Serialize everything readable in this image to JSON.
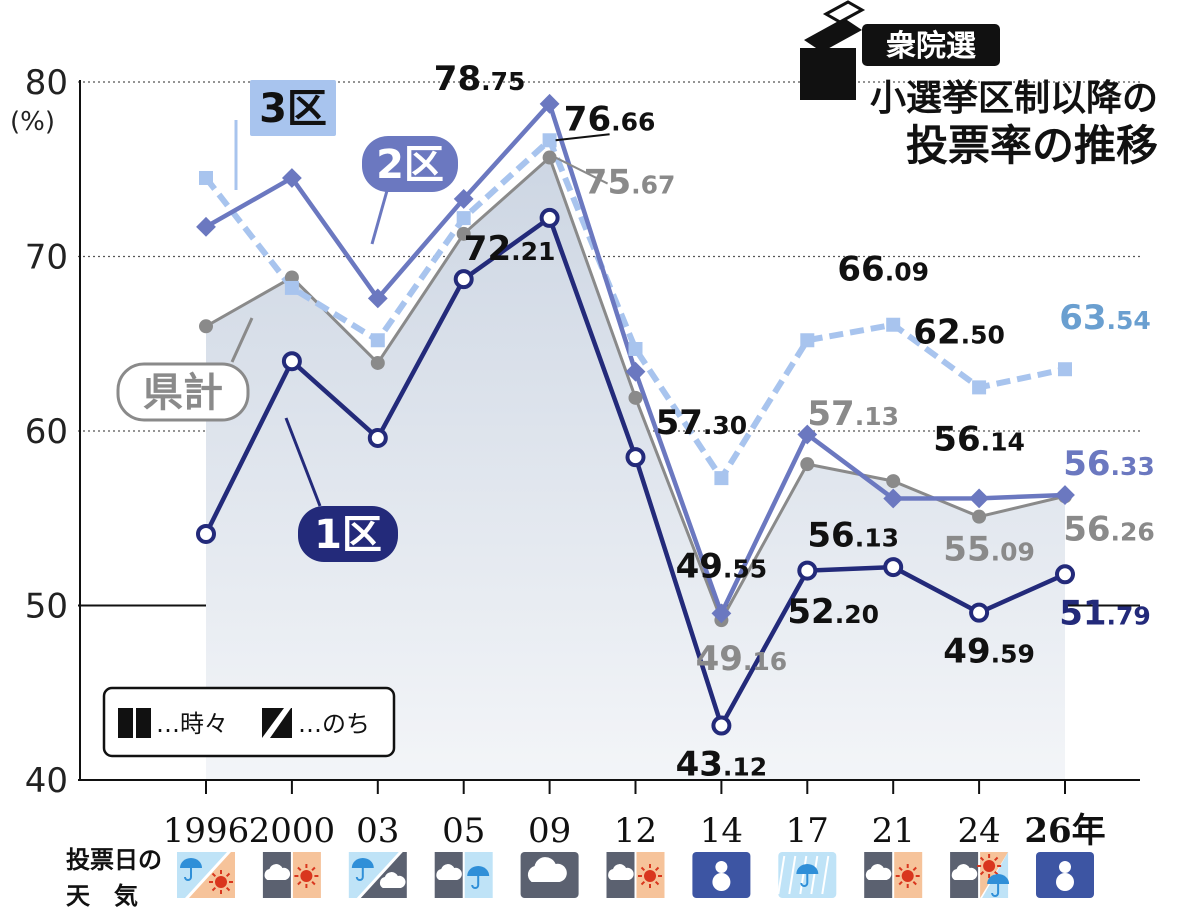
{
  "badge": "衆院選",
  "title_line1": "小選挙区制以降の",
  "title_line2": "投票率の推移",
  "y_unit": "(%)",
  "weather_label_line1": "投票日の",
  "weather_label_line2": "天　気",
  "legend": [
    {
      "icon": "split-square-icon",
      "text": "…時々"
    },
    {
      "icon": "slash-square-icon",
      "text": "…のち"
    }
  ],
  "colors": {
    "district1": "#232a7a",
    "district2": "#6b78c0",
    "district3": "#a8c4ee",
    "prefecture": "#8a8a8a",
    "area_fill": "#e3e8f0",
    "cloudy": "#5b6170",
    "sunny_bg": "#f6c39a",
    "sun": "#d9361e",
    "rain_bg": "#bfe3f7",
    "umbrella": "#2f8fd8",
    "snow_bg": "#3d55a3"
  },
  "chart_data": {
    "type": "line",
    "title": "小選挙区制以降の投票率の推移",
    "x": [
      "1996",
      "2000",
      "03",
      "05",
      "09",
      "12",
      "14",
      "17",
      "21",
      "24",
      "26年"
    ],
    "ylabel": "(%)",
    "ylim": [
      40,
      80
    ],
    "yticks": [
      40,
      50,
      60,
      70,
      80
    ],
    "grid": true,
    "series": [
      {
        "name": "1区",
        "key": "district1",
        "values": [
          54.1,
          64.0,
          59.6,
          68.7,
          72.21,
          58.5,
          43.12,
          52.0,
          52.2,
          49.59,
          51.79
        ]
      },
      {
        "name": "2区",
        "key": "district2",
        "values": [
          71.7,
          74.5,
          67.6,
          73.3,
          78.75,
          63.4,
          49.55,
          59.8,
          56.13,
          56.14,
          56.33
        ]
      },
      {
        "name": "3区",
        "key": "district3",
        "values": [
          74.5,
          68.2,
          65.2,
          72.2,
          76.66,
          64.7,
          57.3,
          65.2,
          66.09,
          62.5,
          63.54
        ]
      },
      {
        "name": "県計",
        "key": "prefecture",
        "values": [
          66.0,
          68.8,
          63.9,
          71.3,
          75.67,
          61.9,
          49.16,
          58.1,
          57.13,
          55.09,
          56.26
        ]
      }
    ],
    "weather": [
      {
        "year": "1996",
        "type": "slash",
        "first": "rain",
        "second": "sunny"
      },
      {
        "year": "2000",
        "type": "split",
        "first": "cloudy",
        "second": "sunny"
      },
      {
        "year": "03",
        "type": "slash",
        "first": "rain",
        "second": "cloudy"
      },
      {
        "year": "05",
        "type": "split",
        "first": "cloudy",
        "second": "rain"
      },
      {
        "year": "09",
        "type": "single",
        "first": "cloudy"
      },
      {
        "year": "12",
        "type": "split",
        "first": "cloudy",
        "second": "sunny"
      },
      {
        "year": "14",
        "type": "single",
        "first": "snow"
      },
      {
        "year": "17",
        "type": "single",
        "first": "rain"
      },
      {
        "year": "21",
        "type": "split",
        "first": "cloudy",
        "second": "sunny"
      },
      {
        "year": "24",
        "type": "split3",
        "first": "cloudy",
        "second": "sunny",
        "third": "rain"
      },
      {
        "year": "26",
        "type": "single",
        "first": "snow"
      }
    ],
    "annotations": [
      {
        "series": "district2",
        "index": 4,
        "int": "78",
        "dec": ".75",
        "color": "#111111"
      },
      {
        "series": "district3",
        "index": 4,
        "int": "76",
        "dec": ".66",
        "color": "#111111"
      },
      {
        "series": "prefecture",
        "index": 4,
        "int": "75",
        "dec": ".67",
        "color": "#8a8a8a"
      },
      {
        "series": "district1",
        "index": 4,
        "int": "72",
        "dec": ".21",
        "color": "#111111"
      },
      {
        "series": "district3",
        "index": 6,
        "int": "57",
        "dec": ".30",
        "color": "#111111"
      },
      {
        "series": "district2",
        "index": 6,
        "int": "49",
        "dec": ".55",
        "color": "#111111"
      },
      {
        "series": "prefecture",
        "index": 6,
        "int": "49",
        "dec": ".16",
        "color": "#8a8a8a"
      },
      {
        "series": "district1",
        "index": 6,
        "int": "43",
        "dec": ".12",
        "color": "#111111"
      },
      {
        "series": "district3",
        "index": 8,
        "int": "66",
        "dec": ".09",
        "color": "#111111"
      },
      {
        "series": "prefecture",
        "index": 8,
        "int": "57",
        "dec": ".13",
        "color": "#8a8a8a"
      },
      {
        "series": "district2",
        "index": 8,
        "int": "56",
        "dec": ".13",
        "color": "#111111"
      },
      {
        "series": "district1",
        "index": 8,
        "int": "52",
        "dec": ".20",
        "color": "#111111"
      },
      {
        "series": "district3",
        "index": 9,
        "int": "62",
        "dec": ".50",
        "color": "#111111"
      },
      {
        "series": "district2",
        "index": 9,
        "int": "56",
        "dec": ".14",
        "color": "#111111"
      },
      {
        "series": "prefecture",
        "index": 9,
        "int": "55",
        "dec": ".09",
        "color": "#8a8a8a"
      },
      {
        "series": "district1",
        "index": 9,
        "int": "49",
        "dec": ".59",
        "color": "#111111"
      },
      {
        "series": "district3",
        "index": 10,
        "int": "63",
        "dec": ".54",
        "color": "#6a9fd0"
      },
      {
        "series": "district2",
        "index": 10,
        "int": "56",
        "dec": ".33",
        "color": "#6b78c0"
      },
      {
        "series": "prefecture",
        "index": 10,
        "int": "56",
        "dec": ".26",
        "color": "#8a8a8a"
      },
      {
        "series": "district1",
        "index": 10,
        "int": "51",
        "dec": ".79",
        "color": "#232a7a"
      }
    ],
    "series_tags": [
      {
        "series": "district3",
        "text": "3区"
      },
      {
        "series": "district2",
        "text": "2区"
      },
      {
        "series": "prefecture",
        "text": "県計"
      },
      {
        "series": "district1",
        "text": "1区"
      }
    ]
  }
}
